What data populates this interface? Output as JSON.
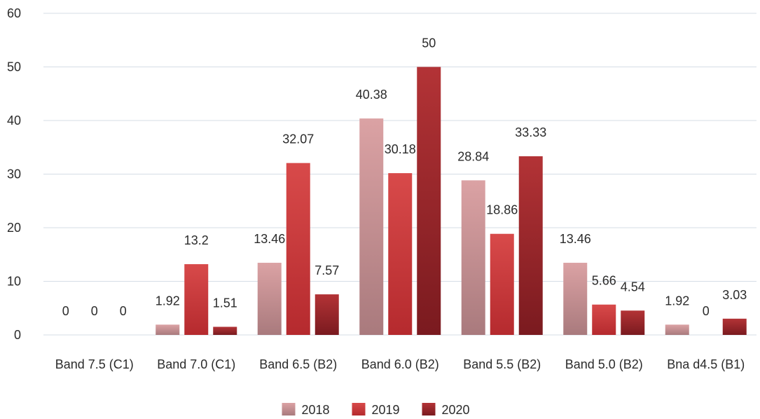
{
  "chart_data": {
    "type": "bar",
    "categories": [
      "Band 7.5 (C1)",
      "Band 7.0 (C1)",
      "Band 6.5 (B2)",
      "Band 6.0 (B2)",
      "Band 5.5 (B2)",
      "Band 5.0 (B2)",
      "Bna d4.5 (B1)"
    ],
    "series": [
      {
        "name": "2018",
        "values": [
          0,
          1.92,
          13.46,
          40.38,
          28.84,
          13.46,
          1.92
        ],
        "color_top": "#dba2a4",
        "color_bottom": "#a97a7d"
      },
      {
        "name": "2019",
        "values": [
          0,
          13.2,
          32.07,
          30.18,
          18.86,
          5.66,
          0
        ],
        "color_top": "#d84a4a",
        "color_bottom": "#b52a2e"
      },
      {
        "name": "2020",
        "values": [
          0,
          1.51,
          7.57,
          50,
          33.33,
          4.54,
          3.03
        ],
        "color_top": "#b33336",
        "color_bottom": "#7a1a1f"
      }
    ],
    "data_labels": [
      [
        "0",
        "1.92",
        "13.46",
        "40.38",
        "28.84",
        "13.46",
        "1.92"
      ],
      [
        "0",
        "13.2",
        "32.07",
        "30.18",
        "18.86",
        "5.66",
        "0"
      ],
      [
        "0",
        "1.51",
        "7.57",
        "50",
        "33.33",
        "4.54",
        "3.03"
      ]
    ],
    "yticks": [
      "0",
      "10",
      "20",
      "30",
      "40",
      "50",
      "60"
    ],
    "ylim": [
      0,
      60
    ],
    "grid": true,
    "legend": "bottom",
    "title": "",
    "xlabel": "",
    "ylabel": ""
  }
}
